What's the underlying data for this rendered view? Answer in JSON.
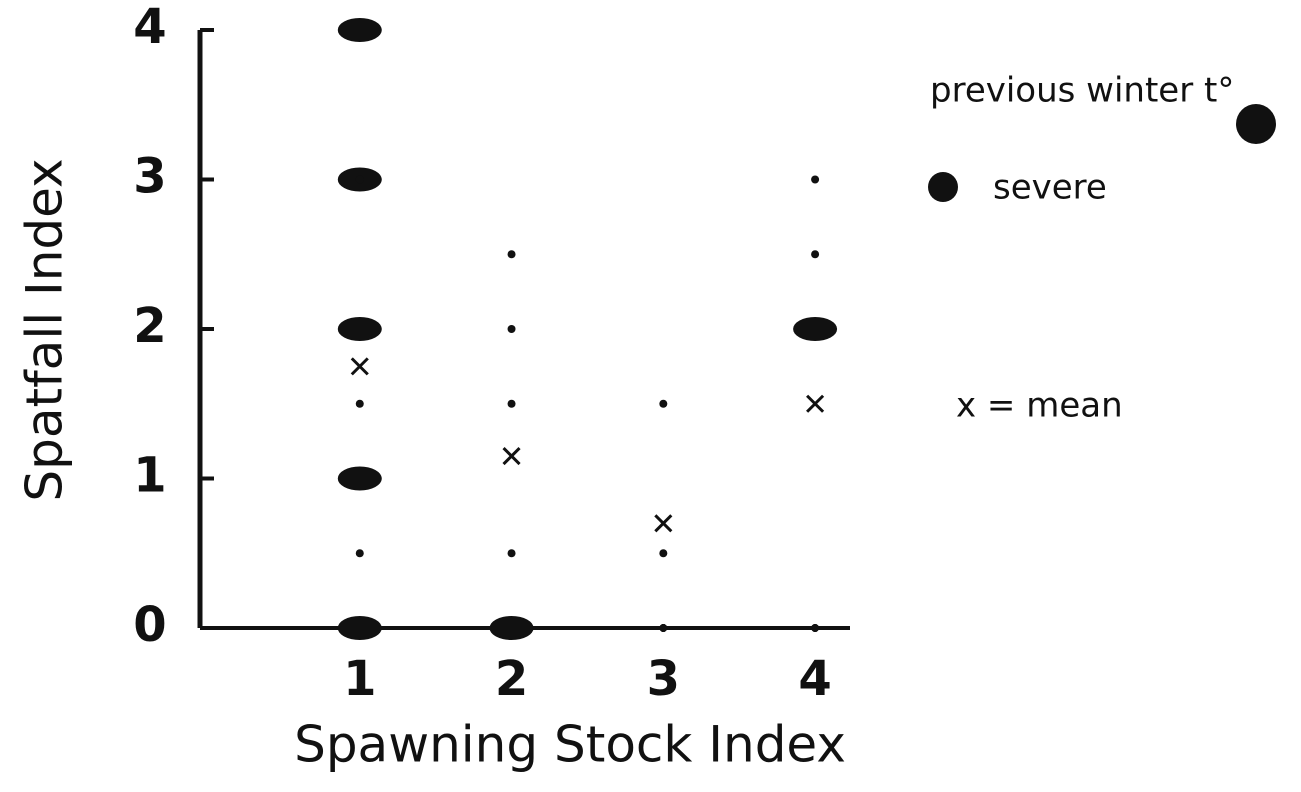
{
  "chart_data": {
    "type": "scatter",
    "xlabel": "Spawning Stock Index",
    "ylabel": "Spatfall Index",
    "xlim": [
      0,
      4.23
    ],
    "ylim": [
      0,
      4
    ],
    "xticks": [
      1,
      2,
      3,
      4
    ],
    "yticks": [
      0,
      1,
      2,
      3,
      4
    ],
    "grid": false,
    "legend_title": "previous winter t°",
    "series": [
      {
        "name": "severe",
        "color": "#111111",
        "marker": "large-dot",
        "x": [
          1,
          1,
          1,
          1,
          1,
          2,
          4
        ],
        "y": [
          4,
          3,
          2,
          1,
          0,
          0,
          2
        ]
      },
      {
        "color": "#111111",
        "marker": "small-dot",
        "x": [
          1,
          2,
          2,
          4,
          4,
          1,
          2,
          3,
          1,
          2,
          3,
          3,
          4
        ],
        "y": [
          3,
          2.5,
          2,
          3,
          2.5,
          1.5,
          1.5,
          1.5,
          0.5,
          0.5,
          0.5,
          0,
          0
        ]
      },
      {
        "name": "x = mean",
        "color": "#111111",
        "marker": "cross",
        "x": [
          1,
          2,
          3,
          4
        ],
        "y": [
          1.75,
          1.15,
          0.7,
          1.5
        ]
      }
    ]
  }
}
